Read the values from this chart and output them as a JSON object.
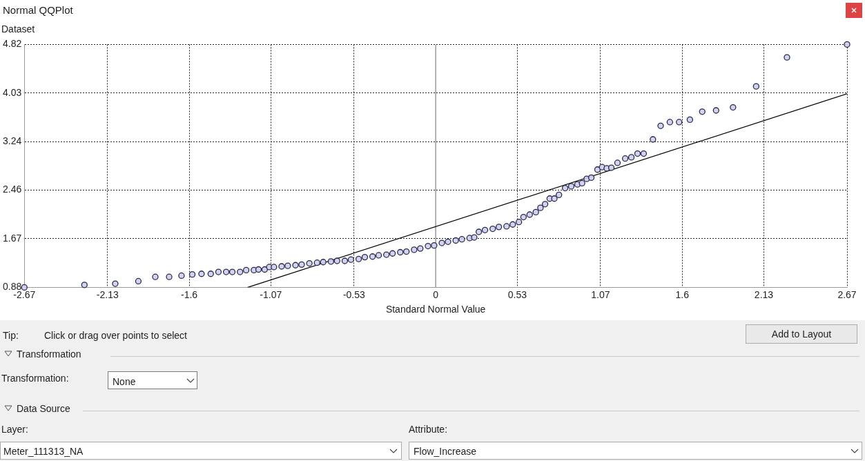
{
  "chart_data": {
    "type": "scatter",
    "title": "Normal QQPlot",
    "ylabel": "Dataset",
    "xlabel": "Standard Normal Value",
    "xlim": [
      -2.67,
      2.67
    ],
    "xticks": [
      -2.67,
      -2.13,
      -1.6,
      -1.07,
      -0.53,
      0,
      0.53,
      1.07,
      1.6,
      2.13,
      2.67
    ],
    "ylim": [
      0.88,
      4.82
    ],
    "yticks": [
      0.88,
      1.67,
      2.46,
      3.24,
      4.03,
      4.82
    ],
    "grid": true,
    "legend": false,
    "ref_lines": [
      {
        "axis": "x",
        "value": 0,
        "color": "#999999",
        "line_style": "solid"
      }
    ],
    "series": [
      {
        "type": "scatter",
        "marker": "circle",
        "color": "#2a2a4a",
        "x": [
          -2.67,
          -2.28,
          -2.08,
          -1.93,
          -1.82,
          -1.73,
          -1.65,
          -1.58,
          -1.52,
          -1.46,
          -1.41,
          -1.36,
          -1.32,
          -1.27,
          -1.23,
          -1.18,
          -1.15,
          -1.11,
          -1.08,
          -1.05,
          -1.0,
          -0.96,
          -0.91,
          -0.87,
          -0.82,
          -0.77,
          -0.73,
          -0.68,
          -0.64,
          -0.59,
          -0.55,
          -0.5,
          -0.46,
          -0.41,
          -0.37,
          -0.32,
          -0.28,
          -0.23,
          -0.19,
          -0.14,
          -0.1,
          -0.05,
          -0.01,
          0.04,
          0.08,
          0.13,
          0.17,
          0.22,
          0.25,
          0.28,
          0.32,
          0.37,
          0.41,
          0.46,
          0.5,
          0.54,
          0.57,
          0.61,
          0.65,
          0.68,
          0.71,
          0.74,
          0.77,
          0.8,
          0.84,
          0.88,
          0.92,
          0.95,
          0.98,
          1.01,
          1.05,
          1.08,
          1.11,
          1.14,
          1.18,
          1.23,
          1.27,
          1.31,
          1.35,
          1.41,
          1.46,
          1.52,
          1.58,
          1.65,
          1.73,
          1.82,
          1.93,
          2.08,
          2.28,
          2.67
        ],
        "values": [
          0.88,
          0.92,
          0.94,
          0.98,
          1.05,
          1.05,
          1.07,
          1.09,
          1.1,
          1.1,
          1.13,
          1.13,
          1.13,
          1.13,
          1.16,
          1.16,
          1.17,
          1.17,
          1.21,
          1.21,
          1.22,
          1.23,
          1.24,
          1.25,
          1.27,
          1.28,
          1.29,
          1.3,
          1.31,
          1.31,
          1.33,
          1.34,
          1.37,
          1.38,
          1.4,
          1.41,
          1.43,
          1.45,
          1.46,
          1.49,
          1.51,
          1.55,
          1.56,
          1.6,
          1.62,
          1.64,
          1.66,
          1.68,
          1.69,
          1.78,
          1.81,
          1.83,
          1.86,
          1.87,
          1.9,
          1.94,
          2.02,
          2.06,
          2.1,
          2.17,
          2.23,
          2.32,
          2.32,
          2.38,
          2.49,
          2.52,
          2.55,
          2.57,
          2.64,
          2.66,
          2.79,
          2.83,
          2.81,
          2.82,
          2.9,
          2.97,
          2.99,
          3.05,
          3.05,
          3.28,
          3.5,
          3.56,
          3.56,
          3.6,
          3.73,
          3.75,
          3.8,
          4.14,
          4.61,
          4.82
        ]
      },
      {
        "type": "line",
        "marker": "none",
        "color": "#000000",
        "x": [
          -1.22,
          2.67
        ],
        "values": [
          0.88,
          4.02
        ]
      }
    ],
    "annotations": [
      "Tip:",
      "Click or drag over points to select",
      "Add to Layout",
      "Transformation",
      "Transformation:",
      "None",
      "Data Source",
      "Layer:",
      "Meter_111313_NA",
      "Attribute:",
      "Flow_Increase"
    ]
  }
}
